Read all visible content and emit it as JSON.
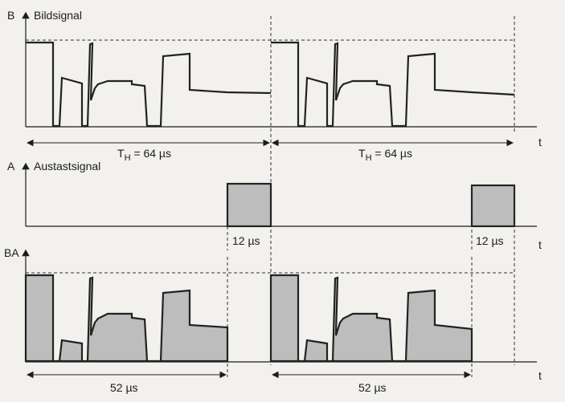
{
  "panels": {
    "bildsignal": {
      "axis_letter": "B",
      "name": "Bildsignal",
      "time_axis": "t"
    },
    "austastsignal": {
      "axis_letter": "A",
      "name": "Austastsignal",
      "time_axis": "t"
    },
    "combined": {
      "axis_letter": "BA",
      "time_axis": "t"
    }
  },
  "dimensions": {
    "period_label_1": "T",
    "period_sub_1": "H",
    "period_value_1": " = 64 µs",
    "period_label_2": "T",
    "period_sub_2": "H",
    "period_value_2": " = 64 µs",
    "blank_1": "12 µs",
    "blank_2": "12 µs",
    "active_1": "52 µs",
    "active_2": "52 µs"
  },
  "colors": {
    "line": "#222222",
    "fill": "#bdbdbd",
    "background": "#f2f1ee"
  }
}
